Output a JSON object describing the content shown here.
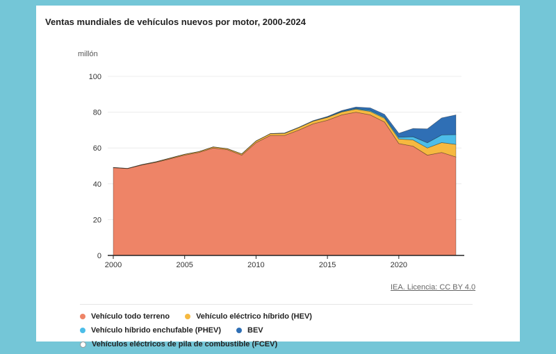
{
  "chart_data": {
    "type": "area",
    "stacked": true,
    "title": "Ventas mundiales de vehículos nuevos por motor, 2000-2024",
    "ylabel": "millón",
    "xlabel": "",
    "xlim": [
      2000,
      2024
    ],
    "ylim": [
      0,
      100
    ],
    "x_ticks": [
      "2000",
      "2005",
      "2010",
      "2015",
      "2020"
    ],
    "y_ticks": [
      "0",
      "20",
      "40",
      "60",
      "80",
      "100"
    ],
    "grid": true,
    "legend_position": "bottom",
    "x": [
      2000,
      2001,
      2002,
      2003,
      2004,
      2005,
      2006,
      2007,
      2008,
      2009,
      2010,
      2011,
      2012,
      2013,
      2014,
      2015,
      2016,
      2017,
      2018,
      2019,
      2020,
      2021,
      2022,
      2023,
      2024
    ],
    "series": [
      {
        "name": "Vehículo todo terreno",
        "color": "#ee8467",
        "values": [
          49,
          48.5,
          50.5,
          52,
          54,
          56,
          57.5,
          60,
          59,
          56,
          63,
          67,
          67,
          70,
          73.5,
          75.5,
          78.5,
          80,
          78.5,
          74.5,
          62.5,
          61,
          56,
          57.5,
          55
        ]
      },
      {
        "name": "Vehículo eléctrico híbrido (HEV)",
        "color": "#f6b940",
        "values": [
          0.1,
          0.1,
          0.2,
          0.3,
          0.4,
          0.5,
          0.5,
          0.6,
          0.6,
          0.7,
          0.9,
          1,
          1.2,
          1.4,
          1.5,
          1.6,
          1.6,
          1.7,
          1.9,
          2.1,
          2.5,
          3.5,
          4,
          5.5,
          7
        ]
      },
      {
        "name": "Vehículo híbrido enchufable (PHEV)",
        "color": "#4cbde8",
        "values": [
          0,
          0,
          0,
          0,
          0,
          0,
          0,
          0,
          0,
          0,
          0,
          0,
          0.1,
          0.1,
          0.1,
          0.2,
          0.3,
          0.4,
          0.6,
          0.6,
          1,
          1.8,
          2.9,
          4.3,
          5.5
        ]
      },
      {
        "name": "BEV",
        "color": "#2f6fb5",
        "values": [
          0,
          0,
          0,
          0,
          0,
          0,
          0,
          0,
          0,
          0,
          0,
          0,
          0.1,
          0.1,
          0.2,
          0.3,
          0.5,
          0.8,
          1.4,
          1.6,
          2.2,
          4.6,
          7.8,
          9.5,
          11
        ]
      },
      {
        "name": "Vehículos eléctricos de pila de combustible (FCEV)",
        "color": "#ffffff",
        "values": [
          0,
          0,
          0,
          0,
          0,
          0,
          0,
          0,
          0,
          0,
          0,
          0,
          0,
          0,
          0,
          0,
          0,
          0,
          0,
          0,
          0,
          0,
          0,
          0,
          0
        ]
      }
    ]
  },
  "source": "IEA. Licencia: CC BY 4.0"
}
